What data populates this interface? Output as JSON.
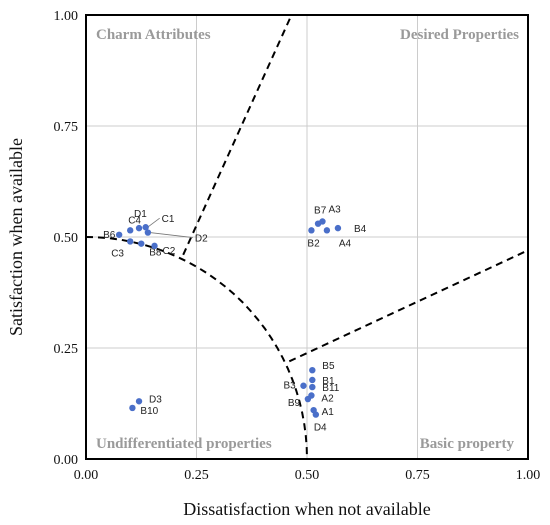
{
  "chart_data": {
    "type": "scatter",
    "xlabel": "Dissatisfaction when not available",
    "ylabel": "Satisfaction when available",
    "xlim": [
      0,
      1
    ],
    "ylim": [
      0,
      1
    ],
    "xticks": [
      "0.00",
      "0.25",
      "0.50",
      "0.75",
      "1.00"
    ],
    "yticks": [
      "0.00",
      "0.25",
      "0.50",
      "0.75",
      "1.00"
    ],
    "grid": true,
    "point_color": "#4a6fc9",
    "quadrant_labels": {
      "top_left": "Charm Attributes",
      "top_right": "Desired Properties",
      "bottom_left": "Undifferentiated properties",
      "bottom_right": "Basic property"
    },
    "points": [
      {
        "label": "B6",
        "x": 0.075,
        "y": 0.505
      },
      {
        "label": "C4",
        "x": 0.1,
        "y": 0.515
      },
      {
        "label": "D1",
        "x": 0.12,
        "y": 0.52
      },
      {
        "label": "C1",
        "x": 0.135,
        "y": 0.522
      },
      {
        "label": "D2",
        "x": 0.14,
        "y": 0.51
      },
      {
        "label": "C3",
        "x": 0.1,
        "y": 0.49
      },
      {
        "label": "B8",
        "x": 0.125,
        "y": 0.485
      },
      {
        "label": "C2",
        "x": 0.155,
        "y": 0.48
      },
      {
        "label": "B7",
        "x": 0.525,
        "y": 0.53
      },
      {
        "label": "A3",
        "x": 0.535,
        "y": 0.535
      },
      {
        "label": "B4",
        "x": 0.57,
        "y": 0.52
      },
      {
        "label": "A4",
        "x": 0.545,
        "y": 0.515
      },
      {
        "label": "B2",
        "x": 0.51,
        "y": 0.515
      },
      {
        "label": "B5",
        "x": 0.512,
        "y": 0.2
      },
      {
        "label": "B1",
        "x": 0.512,
        "y": 0.178
      },
      {
        "label": "B11",
        "x": 0.512,
        "y": 0.162
      },
      {
        "label": "B3",
        "x": 0.492,
        "y": 0.165
      },
      {
        "label": "A2",
        "x": 0.51,
        "y": 0.143
      },
      {
        "label": "B9",
        "x": 0.502,
        "y": 0.135
      },
      {
        "label": "A1",
        "x": 0.515,
        "y": 0.11
      },
      {
        "label": "D4",
        "x": 0.52,
        "y": 0.1
      },
      {
        "label": "D3",
        "x": 0.12,
        "y": 0.13
      },
      {
        "label": "B10",
        "x": 0.105,
        "y": 0.115
      }
    ]
  }
}
